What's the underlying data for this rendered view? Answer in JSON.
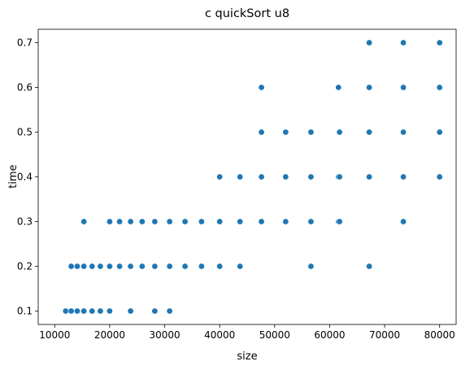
{
  "chart_data": {
    "type": "scatter",
    "title": "c quickSort u8",
    "xlabel": "size",
    "ylabel": "time",
    "xlim": [
      7000,
      83000
    ],
    "ylim": [
      0.07,
      0.73
    ],
    "xticks": [
      10000,
      20000,
      30000,
      40000,
      50000,
      60000,
      70000,
      80000
    ],
    "yticks": [
      0.1,
      0.2,
      0.3,
      0.4,
      0.5,
      0.6,
      0.7
    ],
    "grid": false,
    "marker_color": "#1f77b4",
    "points": [
      {
        "x": 12000,
        "y": 0.1
      },
      {
        "x": 13000,
        "y": 0.1
      },
      {
        "x": 14100,
        "y": 0.1
      },
      {
        "x": 15300,
        "y": 0.1
      },
      {
        "x": 16800,
        "y": 0.1
      },
      {
        "x": 18300,
        "y": 0.1
      },
      {
        "x": 20000,
        "y": 0.1
      },
      {
        "x": 23800,
        "y": 0.1
      },
      {
        "x": 28200,
        "y": 0.1
      },
      {
        "x": 30900,
        "y": 0.1
      },
      {
        "x": 13000,
        "y": 0.2
      },
      {
        "x": 14100,
        "y": 0.2
      },
      {
        "x": 15300,
        "y": 0.2
      },
      {
        "x": 16800,
        "y": 0.2
      },
      {
        "x": 18300,
        "y": 0.2
      },
      {
        "x": 20000,
        "y": 0.2
      },
      {
        "x": 21800,
        "y": 0.2
      },
      {
        "x": 23800,
        "y": 0.2
      },
      {
        "x": 25900,
        "y": 0.2
      },
      {
        "x": 28200,
        "y": 0.2
      },
      {
        "x": 30900,
        "y": 0.2
      },
      {
        "x": 33700,
        "y": 0.2
      },
      {
        "x": 36700,
        "y": 0.2
      },
      {
        "x": 40000,
        "y": 0.2
      },
      {
        "x": 43700,
        "y": 0.2
      },
      {
        "x": 56600,
        "y": 0.2
      },
      {
        "x": 67200,
        "y": 0.2
      },
      {
        "x": 15300,
        "y": 0.3
      },
      {
        "x": 20000,
        "y": 0.3
      },
      {
        "x": 21800,
        "y": 0.3
      },
      {
        "x": 23800,
        "y": 0.3
      },
      {
        "x": 25900,
        "y": 0.3
      },
      {
        "x": 28200,
        "y": 0.3
      },
      {
        "x": 30900,
        "y": 0.3
      },
      {
        "x": 33700,
        "y": 0.3
      },
      {
        "x": 36700,
        "y": 0.3
      },
      {
        "x": 40000,
        "y": 0.3
      },
      {
        "x": 43700,
        "y": 0.3
      },
      {
        "x": 47600,
        "y": 0.3
      },
      {
        "x": 52000,
        "y": 0.3
      },
      {
        "x": 56600,
        "y": 0.3
      },
      {
        "x": 61600,
        "y": 0.3
      },
      {
        "x": 61800,
        "y": 0.3
      },
      {
        "x": 73400,
        "y": 0.3
      },
      {
        "x": 40000,
        "y": 0.4
      },
      {
        "x": 43700,
        "y": 0.4
      },
      {
        "x": 47600,
        "y": 0.4
      },
      {
        "x": 52000,
        "y": 0.4
      },
      {
        "x": 56600,
        "y": 0.4
      },
      {
        "x": 61600,
        "y": 0.4
      },
      {
        "x": 61800,
        "y": 0.4
      },
      {
        "x": 67200,
        "y": 0.4
      },
      {
        "x": 73400,
        "y": 0.4
      },
      {
        "x": 80000,
        "y": 0.4
      },
      {
        "x": 47600,
        "y": 0.5
      },
      {
        "x": 52000,
        "y": 0.5
      },
      {
        "x": 56600,
        "y": 0.5
      },
      {
        "x": 61800,
        "y": 0.5
      },
      {
        "x": 67200,
        "y": 0.5
      },
      {
        "x": 73400,
        "y": 0.5
      },
      {
        "x": 80000,
        "y": 0.5
      },
      {
        "x": 47600,
        "y": 0.6
      },
      {
        "x": 61600,
        "y": 0.6
      },
      {
        "x": 67200,
        "y": 0.6
      },
      {
        "x": 73400,
        "y": 0.6
      },
      {
        "x": 80000,
        "y": 0.6
      },
      {
        "x": 67200,
        "y": 0.7
      },
      {
        "x": 73400,
        "y": 0.7
      },
      {
        "x": 80000,
        "y": 0.7
      }
    ]
  }
}
